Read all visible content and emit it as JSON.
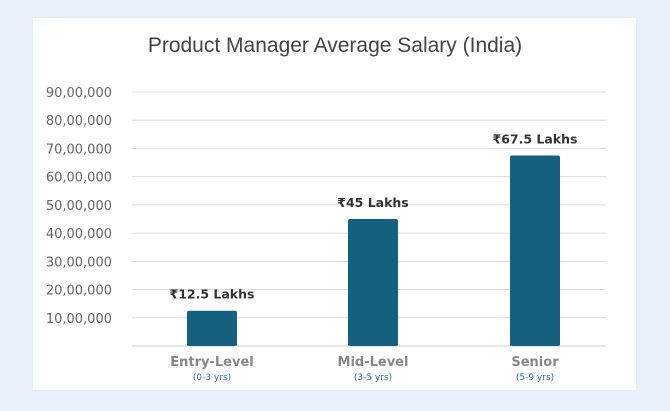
{
  "chart_data": {
    "type": "bar",
    "title": "Product Manager Average Salary (India)",
    "categories": [
      "Entry-Level",
      "Mid-Level",
      "Senior"
    ],
    "subcategories": [
      "(0-3 yrs)",
      "(3-5 yrs)",
      "(5-9 yrs)"
    ],
    "values": [
      1250000,
      4500000,
      6750000
    ],
    "data_labels": [
      "₹12.5 Lakhs",
      "₹45 Lakhs",
      "₹67.5 Lakhs"
    ],
    "yticks": [
      "10,00,000",
      "20,00,000",
      "30,00,000",
      "40,00,000",
      "50,00,000",
      "60,00,000",
      "70,00,000",
      "80,00,000",
      "90,00,000"
    ],
    "ytick_values": [
      1000000,
      2000000,
      3000000,
      4000000,
      5000000,
      6000000,
      7000000,
      8000000,
      9000000
    ],
    "ylim": [
      0,
      9000000
    ],
    "grid": true,
    "colors": {
      "bar": "#16607f",
      "subcategory": "#2a6f97",
      "background": "#e8f1fb"
    }
  }
}
